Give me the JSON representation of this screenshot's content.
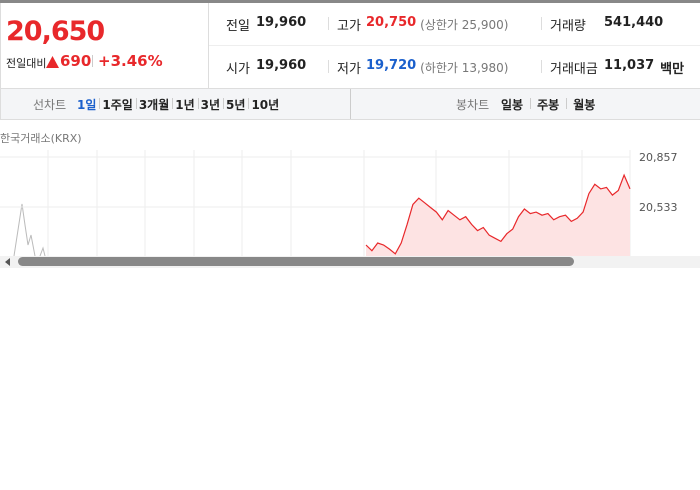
{
  "summary": {
    "price": "20,650",
    "change_label": "전일대비",
    "change": "690",
    "change_pct": "+3.46%"
  },
  "stats": [
    {
      "label": "전일",
      "value": "19,960"
    },
    {
      "label": "고가",
      "value": "20,750",
      "note": "(상한가 25,900)"
    },
    {
      "label": "거래량",
      "value": "541,440"
    },
    {
      "label": "시가",
      "value": "19,960"
    },
    {
      "label": "저가",
      "value": "19,720",
      "note": "(하한가 13,980)"
    },
    {
      "label": "거래대금",
      "value": "11,037",
      "unit": "백만"
    }
  ],
  "tabs": {
    "line_label": "선차트",
    "line": [
      "1일",
      "1주일",
      "3개월",
      "1년",
      "3년",
      "5년",
      "10년"
    ],
    "candle_label": "봉차트",
    "candle": [
      "일봉",
      "주봉",
      "월봉"
    ]
  },
  "chart": {
    "source": "한국거래소(KRX)",
    "color": "#e8282b",
    "yticks": [
      {
        "value": 20857,
        "label": "20,857"
      },
      {
        "value": 20533,
        "label": "20,533"
      }
    ],
    "values": [
      20287,
      20250,
      20300,
      20287,
      20260,
      20230,
      20300,
      20420,
      20550,
      20590,
      20560,
      20530,
      20500,
      20450,
      20510,
      20480,
      20450,
      20470,
      20420,
      20380,
      20400,
      20350,
      20330,
      20310,
      20360,
      20390,
      20470,
      20520,
      20490,
      20500,
      20480,
      20490,
      20450,
      20470,
      20480,
      20440,
      20460,
      20500,
      20620,
      20680,
      20650,
      20660,
      20610,
      20640,
      20740,
      20650
    ]
  }
}
